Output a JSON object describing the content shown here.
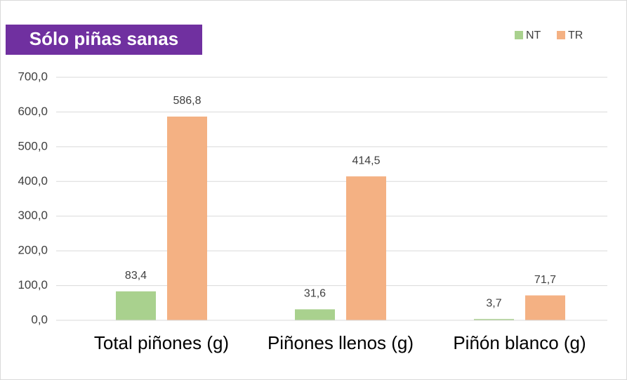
{
  "chart_data": {
    "type": "bar",
    "title": "Sólo piñas sanas",
    "categories": [
      "Total piñones (g)",
      "Piñones llenos (g)",
      "Piñón blanco (g)"
    ],
    "series": [
      {
        "name": "NT",
        "color": "#a9d18e",
        "values": [
          83.4,
          31.6,
          3.7
        ],
        "value_labels": [
          "83,4",
          "31,6",
          "3,7"
        ]
      },
      {
        "name": "TR",
        "color": "#f4b183",
        "values": [
          586.8,
          414.5,
          71.7
        ],
        "value_labels": [
          "586,8",
          "414,5",
          "71,7"
        ]
      }
    ],
    "ylim": [
      0,
      700
    ],
    "yticks": [
      {
        "value": 0,
        "label": "0,0"
      },
      {
        "value": 100,
        "label": "100,0"
      },
      {
        "value": 200,
        "label": "200,0"
      },
      {
        "value": 300,
        "label": "300,0"
      },
      {
        "value": 400,
        "label": "400,0"
      },
      {
        "value": 500,
        "label": "500,0"
      },
      {
        "value": 600,
        "label": "600,0"
      },
      {
        "value": 700,
        "label": "700,0"
      }
    ],
    "grid": true,
    "legend": "top-right"
  }
}
